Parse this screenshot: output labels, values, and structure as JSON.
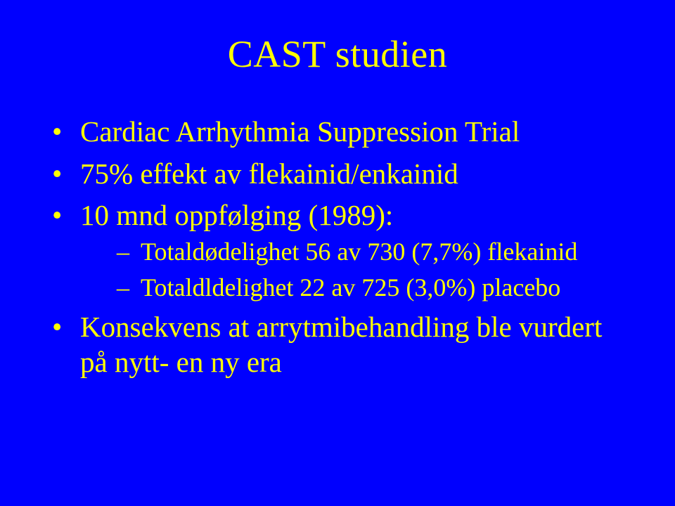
{
  "background_color": "#0000fe",
  "text_color": "#ffff00",
  "font_family": "Times New Roman",
  "title": {
    "text": "CAST studien",
    "fontsize": 54
  },
  "bullets": [
    {
      "text": "Cardiac Arrhythmia Suppression Trial",
      "fontsize": 41
    },
    {
      "text": "75% effekt av flekainid/enkainid",
      "fontsize": 41
    },
    {
      "text": "10 mnd oppfølging (1989):",
      "fontsize": 41,
      "children": [
        {
          "text": "Totaldødelighet 56 av 730 (7,7%) flekainid",
          "fontsize": 36
        },
        {
          "text": "Totaldldelighet 22 av 725 (3,0%) placebo",
          "fontsize": 36
        }
      ]
    },
    {
      "text": "Konsekvens at arrytmibehandling ble vurdert på nytt- en ny era",
      "fontsize": 41
    }
  ]
}
